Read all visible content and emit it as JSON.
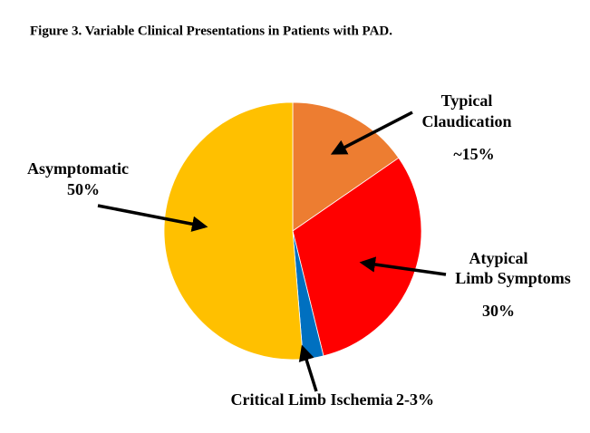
{
  "chart_data": {
    "type": "pie",
    "title": "Figure 3. Variable Clinical Presentations in Patients with PAD.",
    "categories": [
      [
        "Typical",
        "Claudication"
      ],
      [
        "Atypical",
        "Limb Symptoms"
      ],
      [
        "Critical Limb Ischemia"
      ],
      [
        "Asymptomatic"
      ]
    ],
    "values": [
      15,
      30,
      2.5,
      50
    ],
    "value_labels": [
      "~15%",
      "30%",
      "2-3%",
      "50%"
    ],
    "colors": [
      "#ED7D31",
      "#FF0000",
      "#0070C0",
      "#FFC000"
    ]
  }
}
